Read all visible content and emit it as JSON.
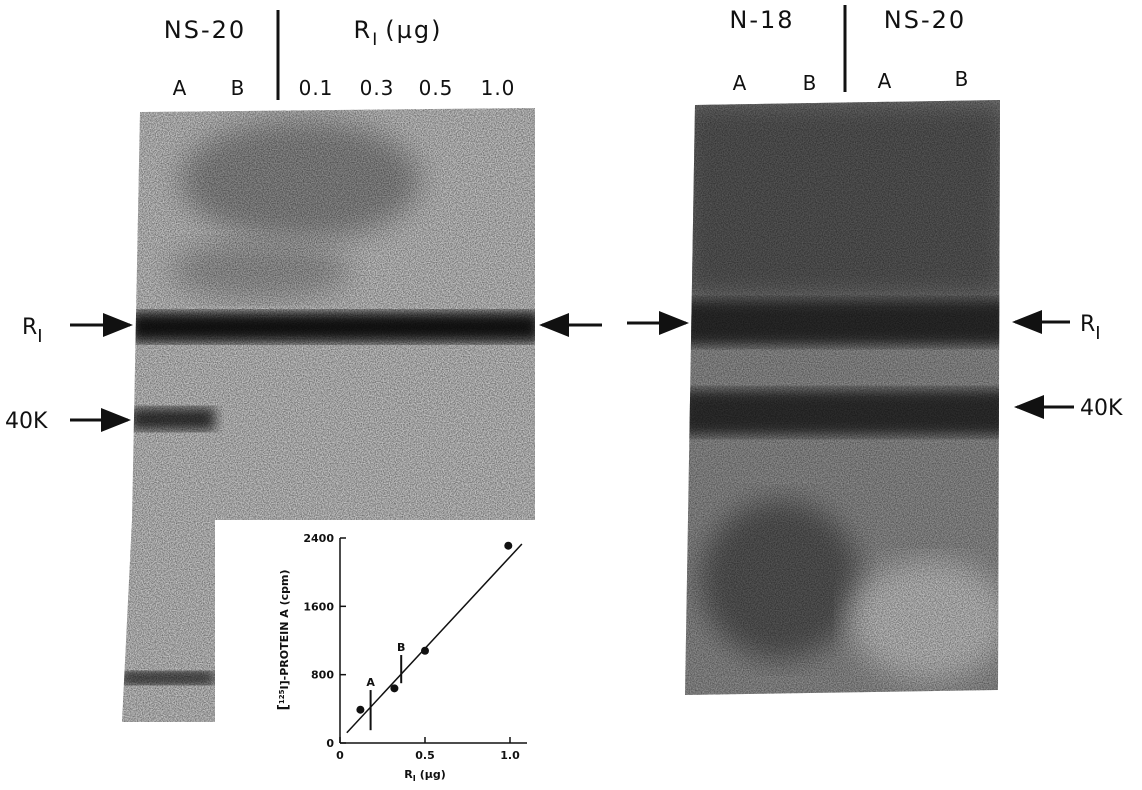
{
  "left_panel": {
    "header_left": "NS-20",
    "header_right": {
      "main": "R",
      "sub": "I",
      "unit": "(µg)"
    },
    "lanes": [
      "A",
      "B",
      "0.1",
      "0.3",
      "0.5",
      "1.0"
    ],
    "markers": [
      {
        "main": "R",
        "sub": "I"
      },
      "40K"
    ]
  },
  "right_panel": {
    "header_left": "N-18",
    "header_right": "NS-20",
    "lanes": [
      "A",
      "B",
      "A",
      "B"
    ],
    "markers": [
      {
        "main": "R",
        "sub": "I"
      },
      "40K"
    ]
  },
  "chart_data": {
    "type": "scatter",
    "x": [
      0.12,
      0.32,
      0.5,
      0.99
    ],
    "y": [
      390,
      640,
      1080,
      2310
    ],
    "xlim": [
      0,
      1.1
    ],
    "ylim": [
      0,
      2400
    ],
    "xticks": [
      0,
      0.5,
      {
        "value": 1,
        "label": "1.0"
      }
    ],
    "yticks": [
      0,
      800,
      1600,
      2400
    ],
    "x_label": {
      "main": "R",
      "sub": "I",
      "unit": "(µg)"
    },
    "y_label": {
      "prefix": "[",
      "sup": "125",
      "main": "I]-PROTEIN A (cpm)"
    },
    "fit_line": {
      "x": [
        0.04,
        1.07
      ],
      "y": [
        120,
        2330
      ]
    },
    "error_bars": [
      {
        "label": "A",
        "x": 0.18,
        "low": 150,
        "high": 620
      },
      {
        "label": "B",
        "x": 0.36,
        "low": 700,
        "high": 1030
      }
    ],
    "color": "#111111"
  }
}
